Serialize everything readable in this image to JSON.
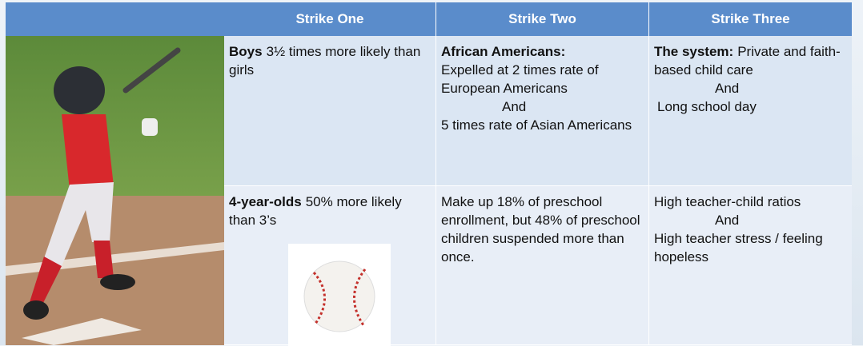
{
  "table": {
    "header": [
      "Strike One",
      "Strike Two",
      "Strike Three"
    ],
    "rows": [
      [
        {
          "bold": "Boys",
          "text": "3½ times more likely than girls"
        },
        {
          "bold": "African Americans:",
          "lines": [
            "Expelled at 2 times rate of European Americans",
            "And",
            "5 times rate of Asian Americans"
          ]
        },
        {
          "bold": "The system:",
          "text": "Private and faith-based child care",
          "lines": [
            "And",
            "Long school day"
          ]
        }
      ],
      [
        {
          "bold": "4-year-olds",
          "text": "50% more likely than 3’s"
        },
        {
          "lines": [
            "Make up 18% of preschool enrollment, but 48% of preschool children suspended more than once."
          ]
        },
        {
          "lines": [
            "High teacher-child ratios",
            "And",
            "High teacher stress / feeling hopeless"
          ]
        }
      ]
    ]
  }
}
